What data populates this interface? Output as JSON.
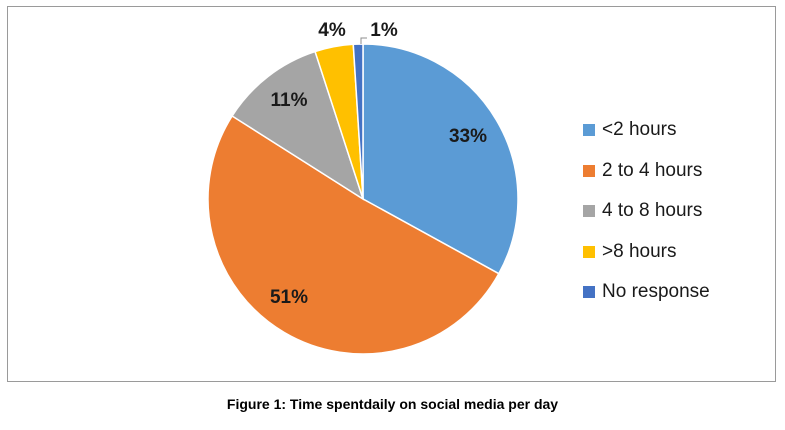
{
  "chart_data": {
    "type": "pie",
    "categories": [
      "<2 hours",
      "2 to 4 hours",
      "4 to 8 hours",
      ">8 hours",
      "No response"
    ],
    "values": [
      33,
      51,
      11,
      4,
      1
    ],
    "data_labels": [
      "33%",
      "51%",
      "11%",
      "4%",
      "1%"
    ],
    "colors": [
      "#5B9BD5",
      "#ED7D31",
      "#A5A5A5",
      "#FFC000",
      "#4472C4"
    ],
    "start": "12 o'clock",
    "direction": "clockwise",
    "legend_position": "right",
    "title": ""
  },
  "caption": "Figure 1: Time spentdaily on social media per day"
}
